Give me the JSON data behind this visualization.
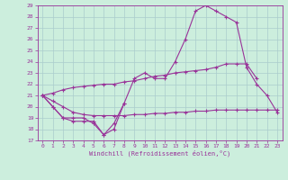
{
  "xlabel": "Windchill (Refroidissement éolien,°C)",
  "background_color": "#cceedd",
  "grid_color": "#aacccc",
  "line_color": "#993399",
  "xlim": [
    -0.5,
    23.5
  ],
  "ylim": [
    17,
    29
  ],
  "xticks": [
    0,
    1,
    2,
    3,
    4,
    5,
    6,
    7,
    8,
    9,
    10,
    11,
    12,
    13,
    14,
    15,
    16,
    17,
    18,
    19,
    20,
    21,
    22,
    23
  ],
  "yticks": [
    17,
    18,
    19,
    20,
    21,
    22,
    23,
    24,
    25,
    26,
    27,
    28,
    29
  ],
  "series": [
    [
      21.0,
      20.0,
      19.0,
      19.0,
      19.0,
      18.5,
      17.5,
      18.0,
      20.3,
      22.5,
      23.0,
      22.5,
      22.5,
      24.0,
      26.0,
      28.5,
      29.0,
      28.5,
      28.0,
      27.5,
      23.5,
      22.0,
      21.0,
      19.5
    ],
    [
      21.0,
      20.0,
      19.0,
      18.7,
      18.7,
      18.7,
      17.5,
      18.5,
      20.3,
      null,
      null,
      null,
      null,
      null,
      null,
      null,
      null,
      null,
      null,
      null,
      null,
      null,
      null,
      null
    ],
    [
      21.0,
      20.5,
      20.0,
      19.5,
      19.3,
      19.2,
      19.2,
      19.2,
      19.2,
      19.3,
      19.3,
      19.4,
      19.4,
      19.5,
      19.5,
      19.6,
      19.6,
      19.7,
      19.7,
      19.7,
      19.7,
      19.7,
      19.7,
      19.7
    ],
    [
      21.0,
      21.2,
      21.5,
      21.7,
      21.8,
      21.9,
      22.0,
      22.0,
      22.2,
      22.3,
      22.5,
      22.7,
      22.8,
      23.0,
      23.1,
      23.2,
      23.3,
      23.5,
      23.8,
      23.8,
      23.8,
      22.5,
      null,
      null
    ]
  ]
}
